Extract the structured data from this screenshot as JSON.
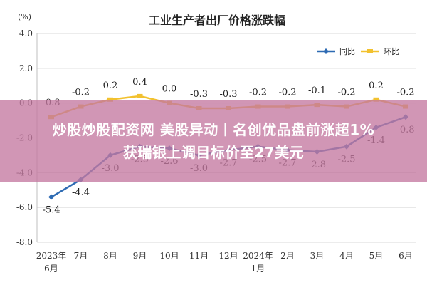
{
  "chart_data": {
    "type": "line",
    "title": "工业生产者出厂价格涨跌幅",
    "ylabel": "(%)",
    "ylim": [
      -8.0,
      4.0
    ],
    "y_ticks": [
      "4.0",
      "2.0",
      "0.0",
      "-2.0",
      "-4.0",
      "-6.0",
      "-8.0"
    ],
    "grid": true,
    "legend_position": "top-right",
    "categories": [
      [
        "2023年",
        "6月"
      ],
      [
        "7月"
      ],
      [
        "8月"
      ],
      [
        "9月"
      ],
      [
        "10月"
      ],
      [
        "11月"
      ],
      [
        "12月"
      ],
      [
        "2024年",
        "1月"
      ],
      [
        "2月"
      ],
      [
        "3月"
      ],
      [
        "4月"
      ],
      [
        "5月"
      ],
      [
        "6月"
      ]
    ],
    "series": [
      {
        "name": "同比",
        "color": "#2e6bb3",
        "values": [
          -5.4,
          -4.4,
          -3.0,
          -2.5,
          -2.6,
          -3.0,
          -2.7,
          -2.5,
          -2.7,
          -2.8,
          -2.5,
          -1.4,
          -0.8
        ],
        "labels": [
          "-5.4",
          "-4.4",
          "-3.0",
          "-2.5",
          "-2.6",
          "-3.0",
          "-2.7",
          "-2.5",
          "-2.7",
          "-2.8",
          "-2.5",
          "-1.4",
          "-0.8"
        ]
      },
      {
        "name": "环比",
        "color": "#f2c12e",
        "values": [
          -0.8,
          -0.2,
          0.2,
          0.4,
          0.0,
          -0.3,
          -0.3,
          -0.2,
          -0.2,
          -0.1,
          -0.2,
          0.2,
          -0.2
        ],
        "labels": [
          "-0.8",
          "-0.2",
          "0.2",
          "0.4",
          "0.0",
          "-0.3",
          "-0.3",
          "-0.2",
          "-0.2",
          "-0.1",
          "-0.2",
          "0.2",
          "-0.2"
        ]
      }
    ]
  },
  "banner": {
    "line1": "炒股炒股配资网 美股异动丨名创优品盘前涨超1%",
    "line2": "获瑞银上调目标价至27美元"
  }
}
